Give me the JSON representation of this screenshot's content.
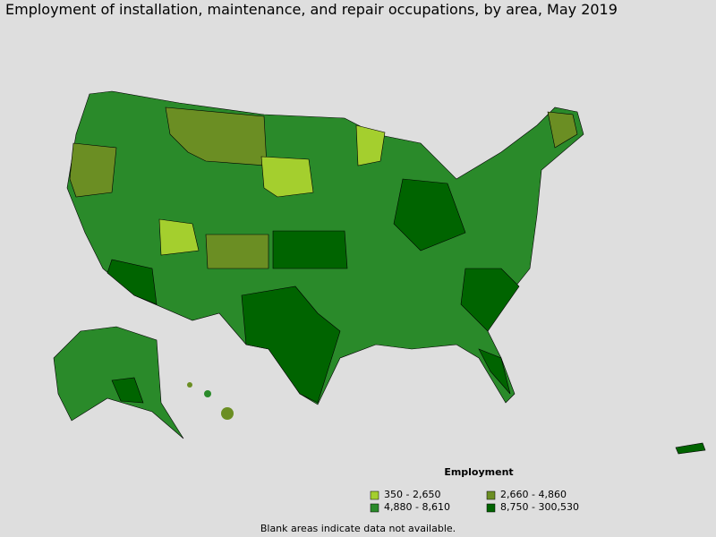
{
  "title": "Employment of installation, maintenance, and repair occupations, by area, May 2019",
  "legend": {
    "title": "Employment",
    "items": [
      {
        "label": "350 - 2,650",
        "color": "#a4cf2e"
      },
      {
        "label": "2,660 - 4,860",
        "color": "#6b8e23"
      },
      {
        "label": "4,880 - 8,610",
        "color": "#2a8a2a"
      },
      {
        "label": "8,750 - 300,530",
        "color": "#006400"
      }
    ]
  },
  "footnote": "Blank areas indicate data not available."
}
